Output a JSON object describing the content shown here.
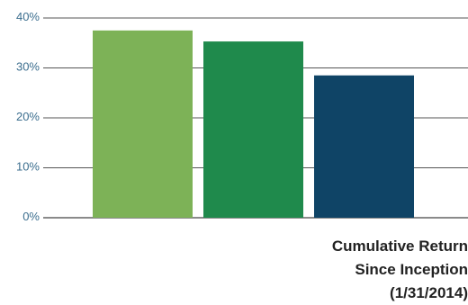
{
  "chart_data": {
    "type": "bar",
    "categories": [
      "",
      "",
      ""
    ],
    "values": [
      37.5,
      35.3,
      28.5
    ],
    "ylim": [
      0,
      40
    ],
    "yticks": [
      0,
      10,
      20,
      30,
      40
    ],
    "ytick_labels": [
      "0%",
      "10%",
      "20%",
      "30%",
      "40%"
    ],
    "grid": true,
    "colors": [
      "#7db257",
      "#1f8a4c",
      "#0f4466"
    ],
    "caption": [
      "Cumulative Return",
      "Since Inception",
      "(1/31/2014)"
    ]
  }
}
